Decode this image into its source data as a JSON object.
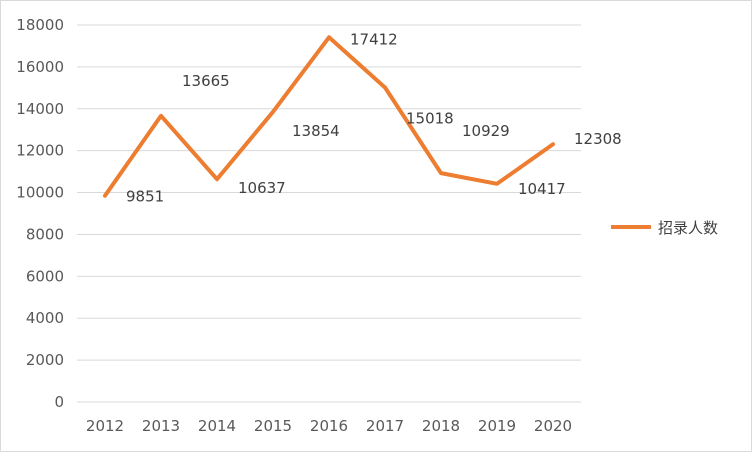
{
  "chart_data": {
    "type": "line",
    "categories": [
      "2012",
      "2013",
      "2014",
      "2015",
      "2016",
      "2017",
      "2018",
      "2019",
      "2020"
    ],
    "series": [
      {
        "name": "招录人数",
        "values": [
          9851,
          13665,
          10637,
          13854,
          17412,
          15018,
          10929,
          10417,
          12308
        ],
        "color": "#ed7d31"
      }
    ],
    "data_labels": [
      "9851",
      "13665",
      "10637",
      "13854",
      "17412",
      "15018",
      "10929",
      "10417",
      "12308"
    ],
    "y_ticks": [
      "0",
      "2000",
      "4000",
      "6000",
      "8000",
      "10000",
      "12000",
      "14000",
      "16000",
      "18000"
    ],
    "ylim": [
      0,
      18000
    ],
    "grid": true,
    "legend_position": "right",
    "gridline_color": "#d9d9d9"
  }
}
